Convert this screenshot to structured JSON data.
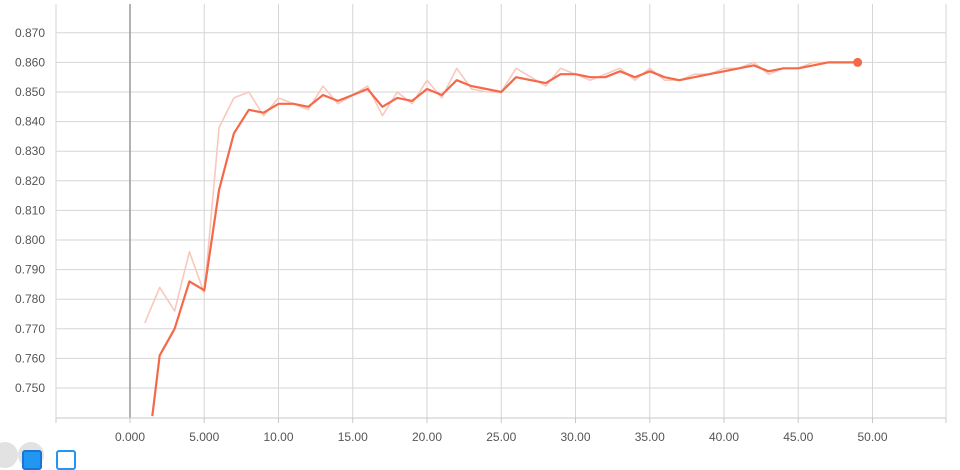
{
  "chart_data": {
    "type": "line",
    "title": "",
    "xlabel": "",
    "ylabel": "",
    "xlim": [
      -5,
      55
    ],
    "ylim": [
      0.74,
      0.875
    ],
    "x_ticks": [
      "0.000",
      "5.000",
      "10.00",
      "15.00",
      "20.00",
      "25.00",
      "30.00",
      "35.00",
      "40.00",
      "45.00",
      "50.00"
    ],
    "x_tick_values": [
      0,
      5,
      10,
      15,
      20,
      25,
      30,
      35,
      40,
      45,
      50
    ],
    "y_ticks": [
      "0.750",
      "0.760",
      "0.770",
      "0.780",
      "0.790",
      "0.800",
      "0.810",
      "0.820",
      "0.830",
      "0.840",
      "0.850",
      "0.860",
      "0.870"
    ],
    "y_tick_values": [
      0.75,
      0.76,
      0.77,
      0.78,
      0.79,
      0.8,
      0.81,
      0.82,
      0.83,
      0.84,
      0.85,
      0.86,
      0.87
    ],
    "grid": true,
    "colors": {
      "raw": "#f7c9bd",
      "smoothed": "#f4694a",
      "zero_line": "#999999"
    },
    "series": [
      {
        "role": "raw",
        "x": [
          1,
          2,
          3,
          4,
          5,
          6,
          7,
          8,
          9,
          10,
          11,
          12,
          13,
          14,
          15,
          16,
          17,
          18,
          19,
          20,
          21,
          22,
          23,
          24,
          25,
          26,
          27,
          28,
          29,
          30,
          31,
          32,
          33,
          34,
          35,
          36,
          37,
          38,
          39,
          40,
          41,
          42,
          43,
          44,
          45,
          46,
          47,
          48,
          49
        ],
        "values": [
          0.772,
          0.784,
          0.776,
          0.796,
          0.782,
          0.838,
          0.848,
          0.85,
          0.842,
          0.848,
          0.846,
          0.844,
          0.852,
          0.846,
          0.849,
          0.852,
          0.842,
          0.85,
          0.846,
          0.854,
          0.848,
          0.858,
          0.851,
          0.85,
          0.85,
          0.858,
          0.855,
          0.852,
          0.858,
          0.856,
          0.854,
          0.856,
          0.858,
          0.854,
          0.858,
          0.854,
          0.854,
          0.856,
          0.856,
          0.858,
          0.858,
          0.86,
          0.856,
          0.858,
          0.858,
          0.86,
          0.86,
          0.86,
          0.86
        ]
      },
      {
        "role": "smoothed",
        "x": [
          1.5,
          2,
          3,
          4,
          5,
          6,
          7,
          8,
          9,
          10,
          11,
          12,
          13,
          14,
          15,
          16,
          17,
          18,
          19,
          20,
          21,
          22,
          23,
          24,
          25,
          26,
          27,
          28,
          29,
          30,
          31,
          32,
          33,
          34,
          35,
          36,
          37,
          38,
          39,
          40,
          41,
          42,
          43,
          44,
          45,
          46,
          47,
          48,
          49
        ],
        "values": [
          0.7405,
          0.761,
          0.77,
          0.786,
          0.783,
          0.817,
          0.836,
          0.844,
          0.843,
          0.846,
          0.846,
          0.845,
          0.849,
          0.847,
          0.849,
          0.851,
          0.845,
          0.848,
          0.847,
          0.851,
          0.849,
          0.854,
          0.852,
          0.851,
          0.85,
          0.855,
          0.854,
          0.853,
          0.856,
          0.856,
          0.855,
          0.855,
          0.857,
          0.855,
          0.857,
          0.855,
          0.854,
          0.855,
          0.856,
          0.857,
          0.858,
          0.859,
          0.857,
          0.858,
          0.858,
          0.859,
          0.86,
          0.86,
          0.86
        ]
      }
    ],
    "endpoint": {
      "x": 49,
      "y": 0.86
    }
  },
  "toolbar": {
    "icons": [
      "expand-icon",
      "data-icon",
      "checkbox-icon",
      "fit-icon"
    ]
  }
}
